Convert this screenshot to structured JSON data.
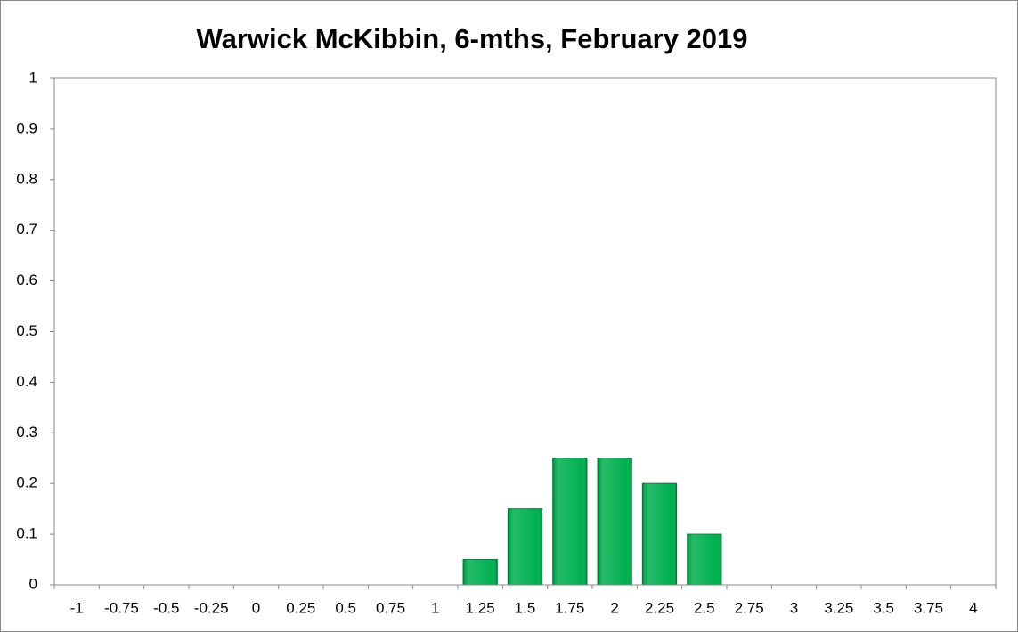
{
  "chart_data": {
    "type": "bar",
    "title": "Warwick McKibbin, 6-mths, February 2019",
    "categories": [
      "-1",
      "-0.75",
      "-0.5",
      "-0.25",
      "0",
      "0.25",
      "0.5",
      "0.75",
      "1",
      "1.25",
      "1.5",
      "1.75",
      "2",
      "2.25",
      "2.5",
      "2.75",
      "3",
      "3.25",
      "3.5",
      "3.75",
      "4"
    ],
    "values": [
      0,
      0,
      0,
      0,
      0,
      0,
      0,
      0,
      0,
      0.05,
      0.15,
      0.25,
      0.25,
      0.2,
      0.1,
      0,
      0,
      0,
      0,
      0,
      0
    ],
    "color": "#00b050",
    "ylim": [
      0,
      1
    ],
    "yticks": [
      0,
      0.1,
      0.2,
      0.3,
      0.4,
      0.5,
      0.6,
      0.7,
      0.8,
      0.9,
      1
    ],
    "grid": false
  }
}
